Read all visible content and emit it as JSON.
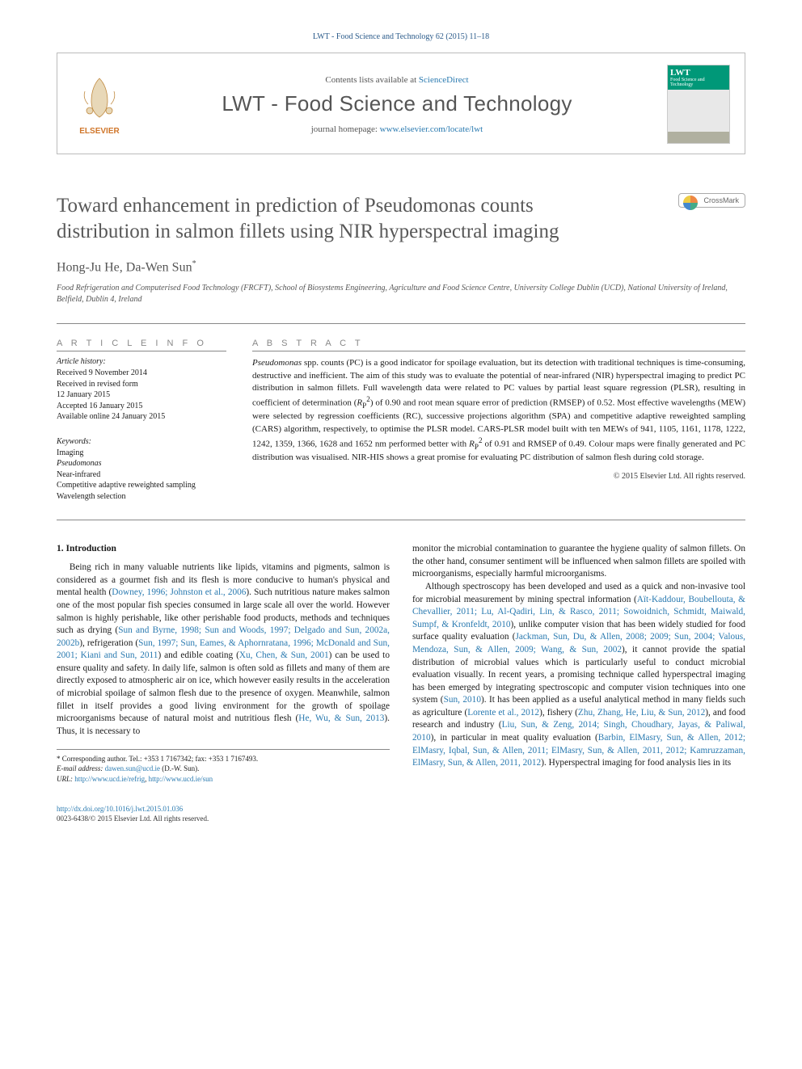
{
  "header": {
    "citation": "LWT - Food Science and Technology 62 (2015) 11–18",
    "contents_prefix": "Contents lists available at ",
    "contents_link": "ScienceDirect",
    "journal_name": "LWT - Food Science and Technology",
    "homepage_prefix": "journal homepage: ",
    "homepage_link": "www.elsevier.com/locate/lwt",
    "publisher_label": "ELSEVIER",
    "cover_label": "LWT",
    "cover_subtitle": "Food Science and Technology",
    "crossmark_label": "CrossMark"
  },
  "article": {
    "title": "Toward enhancement in prediction of Pseudomonas counts distribution in salmon fillets using NIR hyperspectral imaging",
    "authors": "Hong-Ju He, Da-Wen Sun",
    "author_sup": "*",
    "affiliation": "Food Refrigeration and Computerised Food Technology (FRCFT), School of Biosystems Engineering, Agriculture and Food Science Centre, University College Dublin (UCD), National University of Ireland, Belfield, Dublin 4, Ireland"
  },
  "info": {
    "heading": "A R T I C L E   I N F O",
    "history_label": "Article history:",
    "history": [
      "Received 9 November 2014",
      "Received in revised form",
      "12 January 2015",
      "Accepted 16 January 2015",
      "Available online 24 January 2015"
    ],
    "keywords_label": "Keywords:",
    "keywords": [
      "Imaging",
      "Pseudomonas",
      "Near-infrared",
      "Competitive adaptive reweighted sampling",
      "Wavelength selection"
    ]
  },
  "abstract": {
    "heading": "A B S T R A C T",
    "text_html": "<em>Pseudomonas</em> spp. counts (PC) is a good indicator for spoilage evaluation, but its detection with traditional techniques is time-consuming, destructive and inefficient. The aim of this study was to evaluate the potential of near-infrared (NIR) hyperspectral imaging to predict PC distribution in salmon fillets. Full wavelength data were related to PC values by partial least square regression (PLSR), resulting in coefficient of determination (<em>R</em><sub>P</sub><sup>2</sup>) of 0.90 and root mean square error of prediction (RMSEP) of 0.52. Most effective wavelengths (MEW) were selected by regression coefficients (RC), successive projections algorithm (SPA) and competitive adaptive reweighted sampling (CARS) algorithm, respectively, to optimise the PLSR model. CARS-PLSR model built with ten MEWs of 941, 1105, 1161, 1178, 1222, 1242, 1359, 1366, 1628 and 1652 nm performed better with <em>R</em><sub>P</sub><sup>2</sup> of 0.91 and RMSEP of 0.49. Colour maps were finally generated and PC distribution was visualised. NIR-HIS shows a great promise for evaluating PC distribution of salmon flesh during cold storage.",
    "copyright": "© 2015 Elsevier Ltd. All rights reserved."
  },
  "body": {
    "section_number": "1.",
    "section_title": "Introduction",
    "para1_html": "Being rich in many valuable nutrients like lipids, vitamins and pigments, salmon is considered as a gourmet fish and its flesh is more conducive to human's physical and mental health (<span class='ref-link'>Downey, 1996; Johnston et al., 2006</span>). Such nutritious nature makes salmon one of the most popular fish species consumed in large scale all over the world. However salmon is highly perishable, like other perishable food products, methods and techniques such as drying (<span class='ref-link'>Sun and Byrne, 1998; Sun and Woods, 1997; Delgado and Sun, 2002a, 2002b</span>), refrigeration (<span class='ref-link'>Sun, 1997; Sun, Eames, &amp; Aphornratana, 1996; McDonald and Sun, 2001; Kiani and Sun, 2011</span>) and edible coating (<span class='ref-link'>Xu, Chen, &amp; Sun, 2001</span>) can be used to ensure quality and safety. In daily life, salmon is often sold as fillets and many of them are directly exposed to atmospheric air on ice, which however easily results in the acceleration of microbial spoilage of salmon flesh due to the presence of oxygen. Meanwhile, salmon fillet in itself provides a good living environment for the growth of spoilage microorganisms because of natural moist and nutritious flesh (<span class='ref-link'>He, Wu, &amp; Sun, 2013</span>). Thus, it is necessary to",
    "para2_html": "monitor the microbial contamination to guarantee the hygiene quality of salmon fillets. On the other hand, consumer sentiment will be influenced when salmon fillets are spoiled with microorganisms, especially harmful microorganisms.",
    "para3_html": "Although spectroscopy has been developed and used as a quick and non-invasive tool for microbial measurement by mining spectral information (<span class='ref-link'>Aït-Kaddour, Boubellouta, &amp; Chevallier, 2011; Lu, Al-Qadiri, Lin, &amp; Rasco, 2011; Sowoidnich, Schmidt, Maiwald, Sumpf, &amp; Kronfeldt, 2010</span>), unlike computer vision that has been widely studied for food surface quality evaluation (<span class='ref-link'>Jackman, Sun, Du, &amp; Allen, 2008; 2009; Sun, 2004; Valous, Mendoza, Sun, &amp; Allen, 2009; Wang, &amp; Sun, 2002</span>), it cannot provide the spatial distribution of microbial values which is particularly useful to conduct microbial evaluation visually. In recent years, a promising technique called hyperspectral imaging has been emerged by integrating spectroscopic and computer vision techniques into one system (<span class='ref-link'>Sun, 2010</span>). It has been applied as a useful analytical method in many fields such as agriculture (<span class='ref-link'>Lorente et al., 2012</span>), fishery (<span class='ref-link'>Zhu, Zhang, He, Liu, &amp; Sun, 2012</span>), and food research and industry (<span class='ref-link'>Liu, Sun, &amp; Zeng, 2014; Singh, Choudhary, Jayas, &amp; Paliwal, 2010</span>), in particular in meat quality evaluation (<span class='ref-link'>Barbin, ElMasry, Sun, &amp; Allen, 2012; ElMasry, Iqbal, Sun, &amp; Allen, 2011; ElMasry, Sun, &amp; Allen, 2011, 2012; Kamruzzaman, ElMasry, Sun, &amp; Allen, 2011, 2012</span>). Hyperspectral imaging for food analysis lies in its"
  },
  "corr": {
    "line1_prefix": "* Corresponding author. Tel.: ",
    "tel": "+353 1 7167342",
    "fax_prefix": "; fax: ",
    "fax": "+353 1 7167493.",
    "email_label": "E-mail address: ",
    "email": "dawen.sun@ucd.ie",
    "email_suffix": " (D.-W. Sun).",
    "url_label": "URL: ",
    "url1": "http://www.ucd.ie/refrig",
    "url_sep": ", ",
    "url2": "http://www.ucd.ie/sun"
  },
  "footer": {
    "doi": "http://dx.doi.org/10.1016/j.lwt.2015.01.036",
    "issn_line": "0023-6438/© 2015 Elsevier Ltd. All rights reserved."
  },
  "colors": {
    "link": "#2a7ab0",
    "muted": "#555555",
    "rule": "#888888",
    "cover_green": "#009878"
  }
}
